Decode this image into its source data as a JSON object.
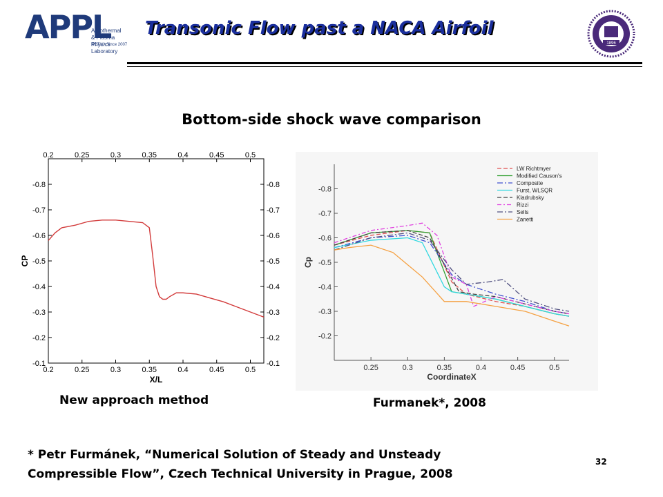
{
  "header": {
    "logo_letters": "APPL",
    "logo_line1": "Aerothermal",
    "logo_line2": "& Plasma Physics Laboratory",
    "logo_line3": "NCTU • Since 2007",
    "title": "Transonic Flow past a NACA Airfoil",
    "seal_year": "1896"
  },
  "subtitle": "Bottom-side shock wave comparison",
  "captions": {
    "left": "New approach method",
    "right": "Furmanek*, 2008"
  },
  "reference": {
    "line1": "* Petr Furmánek, “Numerical Solution of Steady and Unsteady",
    "line2": "Compressible Flow”, Czech Technical University in Prague, 2008"
  },
  "page_number": "32",
  "chart_data": [
    {
      "type": "line",
      "xlabel": "X/L",
      "ylabel": "CP",
      "xlim": [
        0.2,
        0.52
      ],
      "ylim": [
        -0.1,
        -0.9
      ],
      "xticks": [
        "0.2",
        "0.25",
        "0.3",
        "0.35",
        "0.4",
        "0.45",
        "0.5"
      ],
      "yticks": [
        "-0.8",
        "-0.7",
        "-0.6",
        "-0.5",
        "-0.4",
        "-0.3",
        "-0.2",
        "-0.1"
      ],
      "line_color": "#d23a3a",
      "series": [
        {
          "x": [
            0.2,
            0.21,
            0.22,
            0.24,
            0.26,
            0.28,
            0.3,
            0.32,
            0.34,
            0.35,
            0.355,
            0.36,
            0.365,
            0.37,
            0.375,
            0.38,
            0.39,
            0.4,
            0.42,
            0.44,
            0.46,
            0.48,
            0.5,
            0.52
          ],
          "y": [
            -0.58,
            -0.61,
            -0.63,
            -0.64,
            -0.655,
            -0.66,
            -0.66,
            -0.655,
            -0.65,
            -0.63,
            -0.52,
            -0.4,
            -0.36,
            -0.35,
            -0.35,
            -0.36,
            -0.375,
            -0.375,
            -0.37,
            -0.355,
            -0.34,
            -0.32,
            -0.3,
            -0.28
          ]
        }
      ]
    },
    {
      "type": "line",
      "xlabel": "CoordinateX",
      "ylabel": "Cp",
      "xlim": [
        0.2,
        0.52
      ],
      "ylim": [
        -0.1,
        -0.9
      ],
      "xticks": [
        "0.25",
        "0.3",
        "0.35",
        "0.4",
        "0.45",
        "0.5"
      ],
      "yticks": [
        "-0.8",
        "-0.7",
        "-0.6",
        "-0.5",
        "-0.4",
        "-0.3",
        "-0.2"
      ],
      "legend_position": "top-right",
      "series": [
        {
          "name": "LW Richtmyer",
          "color": "#e05050",
          "dash": "6,3",
          "x": [
            0.2,
            0.25,
            0.3,
            0.33,
            0.36,
            0.38,
            0.42,
            0.46,
            0.5,
            0.52
          ],
          "y": [
            -0.57,
            -0.61,
            -0.63,
            -0.62,
            -0.42,
            -0.37,
            -0.34,
            -0.32,
            -0.29,
            -0.28
          ]
        },
        {
          "name": "Modified Causon's",
          "color": "#30a030",
          "dash": "",
          "x": [
            0.2,
            0.25,
            0.3,
            0.33,
            0.36,
            0.38,
            0.42,
            0.46,
            0.5,
            0.52
          ],
          "y": [
            -0.57,
            -0.62,
            -0.63,
            -0.62,
            -0.38,
            -0.37,
            -0.35,
            -0.32,
            -0.29,
            -0.28
          ]
        },
        {
          "name": "Composite",
          "color": "#4050d0",
          "dash": "8,3,2,3",
          "x": [
            0.2,
            0.25,
            0.3,
            0.33,
            0.36,
            0.38,
            0.42,
            0.46,
            0.5,
            0.52
          ],
          "y": [
            -0.56,
            -0.6,
            -0.61,
            -0.58,
            -0.45,
            -0.41,
            -0.37,
            -0.34,
            -0.3,
            -0.29
          ]
        },
        {
          "name": "Furst, WLSQR",
          "color": "#30d8e0",
          "dash": "",
          "x": [
            0.2,
            0.25,
            0.3,
            0.32,
            0.35,
            0.36,
            0.38,
            0.42,
            0.46,
            0.5,
            0.52
          ],
          "y": [
            -0.56,
            -0.59,
            -0.6,
            -0.58,
            -0.4,
            -0.38,
            -0.37,
            -0.35,
            -0.32,
            -0.29,
            -0.28
          ]
        },
        {
          "name": "Kladrubsky",
          "color": "#404040",
          "dash": "6,3",
          "x": [
            0.2,
            0.25,
            0.3,
            0.33,
            0.37,
            0.39,
            0.42,
            0.46,
            0.5,
            0.52
          ],
          "y": [
            -0.57,
            -0.62,
            -0.63,
            -0.6,
            -0.38,
            -0.37,
            -0.36,
            -0.33,
            -0.3,
            -0.29
          ]
        },
        {
          "name": "Rizzi",
          "color": "#e040e0",
          "dash": "6,3,2,3",
          "x": [
            0.2,
            0.25,
            0.3,
            0.32,
            0.34,
            0.36,
            0.38,
            0.39,
            0.42,
            0.46,
            0.5,
            0.52
          ],
          "y": [
            -0.58,
            -0.63,
            -0.65,
            -0.66,
            -0.61,
            -0.44,
            -0.41,
            -0.32,
            -0.36,
            -0.33,
            -0.3,
            -0.29
          ]
        },
        {
          "name": "Sells",
          "color": "#505080",
          "dash": "8,3,2,3",
          "x": [
            0.2,
            0.25,
            0.3,
            0.33,
            0.36,
            0.38,
            0.41,
            0.43,
            0.46,
            0.5,
            0.52
          ],
          "y": [
            -0.55,
            -0.6,
            -0.62,
            -0.59,
            -0.47,
            -0.41,
            -0.42,
            -0.43,
            -0.35,
            -0.31,
            -0.3
          ]
        },
        {
          "name": "Zanetti",
          "color": "#f5a040",
          "dash": "",
          "x": [
            0.2,
            0.22,
            0.25,
            0.28,
            0.32,
            0.35,
            0.38,
            0.42,
            0.46,
            0.5,
            0.52
          ],
          "y": [
            -0.55,
            -0.56,
            -0.57,
            -0.54,
            -0.44,
            -0.34,
            -0.34,
            -0.32,
            -0.3,
            -0.26,
            -0.24
          ]
        }
      ]
    }
  ]
}
